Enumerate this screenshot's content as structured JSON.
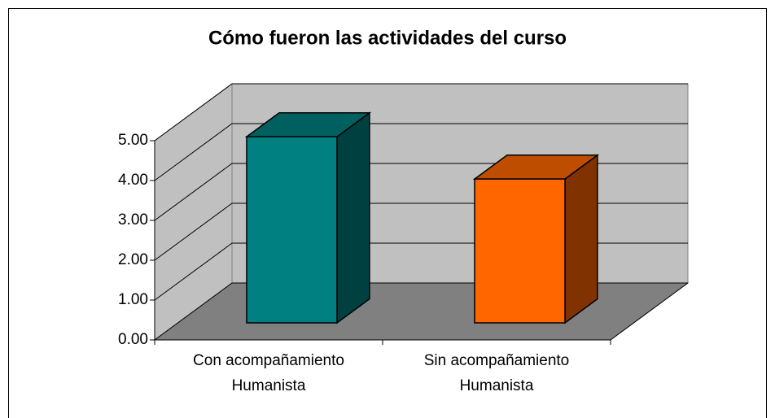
{
  "chart_data": {
    "type": "bar3d",
    "title": "Cómo fueron las actividades del curso",
    "categories": [
      "Con acompañamiento\nHumanista",
      "Sin acompañamiento\nHumanista"
    ],
    "values": [
      4.67,
      3.61
    ],
    "colors": [
      "#008080",
      "#ff6600"
    ],
    "ylim": [
      0,
      5
    ],
    "yticks": [
      {
        "value": 0,
        "label": "0.00"
      },
      {
        "value": 1,
        "label": "1.00"
      },
      {
        "value": 2,
        "label": "2.00"
      },
      {
        "value": 3,
        "label": "3.00"
      },
      {
        "value": 4,
        "label": "4.00"
      },
      {
        "value": 5,
        "label": "5.00"
      }
    ],
    "grid": true
  }
}
